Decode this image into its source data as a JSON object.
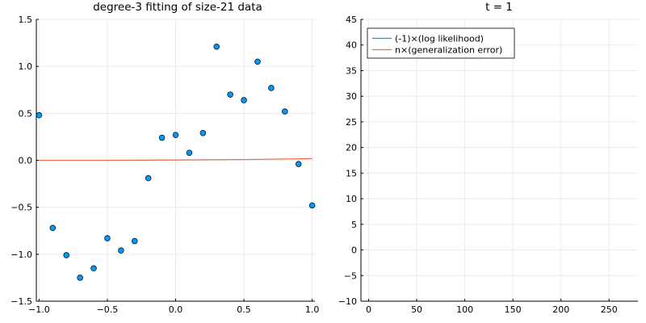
{
  "colors": {
    "points": "#009af9",
    "fit": "#e26f46",
    "neg_log_likelihood": "#009af9",
    "generalization_error": "#e26f46",
    "grid": "#ebebeb",
    "axis": "#000000"
  },
  "chart_data": [
    {
      "type": "scatter",
      "title": "degree-3 fitting of size-21 data",
      "xlabel": "",
      "ylabel": "",
      "xlim": [
        -1.02,
        1.02
      ],
      "ylim": [
        -1.5,
        1.5
      ],
      "xticks": [
        -1.0,
        -0.5,
        0.0,
        0.5,
        1.0
      ],
      "xtick_labels": [
        "−1.0",
        "−0.5",
        "0.0",
        "0.5",
        "1.0"
      ],
      "yticks": [
        -1.5,
        -1.0,
        -0.5,
        0.0,
        0.5,
        1.0,
        1.5
      ],
      "ytick_labels": [
        "−1.5",
        "−1.0",
        "−0.5",
        "0.0",
        "0.5",
        "1.0",
        "1.5"
      ],
      "grid": true,
      "legend": false,
      "points": {
        "x": [
          -1.0,
          -0.9,
          -0.8,
          -0.7,
          -0.6,
          -0.5,
          -0.4,
          -0.3,
          -0.2,
          -0.1,
          0.0,
          0.1,
          0.2,
          0.3,
          0.4,
          0.5,
          0.6,
          0.7,
          0.8,
          0.9,
          1.0
        ],
        "y": [
          0.48,
          -0.72,
          -1.01,
          -1.25,
          -1.15,
          -0.83,
          -0.96,
          -0.86,
          -0.19,
          0.24,
          0.27,
          0.08,
          0.29,
          1.21,
          0.7,
          0.64,
          1.05,
          0.77,
          0.52,
          -0.04,
          -0.48
        ]
      },
      "fit_line": {
        "x": [
          -1.0,
          -0.5,
          0.0,
          0.5,
          1.0
        ],
        "y": [
          0.0,
          0.0,
          0.003,
          0.008,
          0.018
        ]
      }
    },
    {
      "type": "line",
      "title": "t = 1",
      "xlabel": "",
      "ylabel": "",
      "xlim": [
        -8,
        280
      ],
      "ylim": [
        -10,
        45
      ],
      "xticks": [
        0,
        50,
        100,
        150,
        200,
        250
      ],
      "xtick_labels": [
        "0",
        "50",
        "100",
        "150",
        "200",
        "250"
      ],
      "yticks": [
        -10,
        -5,
        0,
        5,
        10,
        15,
        20,
        25,
        30,
        35,
        40,
        45
      ],
      "ytick_labels": [
        "−10",
        "−5",
        "0",
        "5",
        "10",
        "15",
        "20",
        "25",
        "30",
        "35",
        "40",
        "45"
      ],
      "grid": true,
      "legend": "top-left",
      "series": [
        {
          "name": "(-1)×(log likelihood)",
          "x": [],
          "y": []
        },
        {
          "name": "n×(generalization error)",
          "x": [],
          "y": []
        }
      ]
    }
  ]
}
